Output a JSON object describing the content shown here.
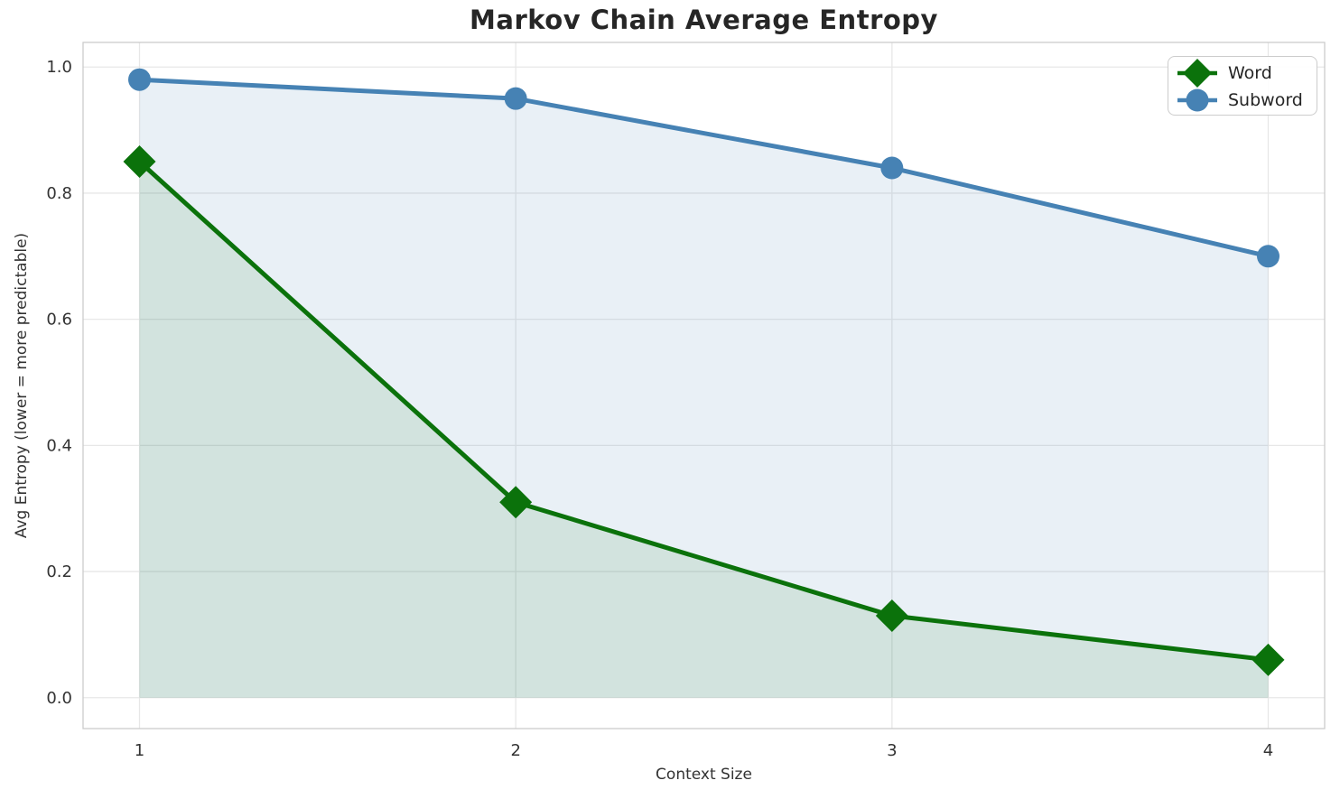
{
  "chart_data": {
    "type": "line",
    "title": "Markov Chain Average Entropy",
    "xlabel": "Context Size",
    "ylabel": "Avg Entropy (lower = more predictable)",
    "x": [
      1,
      2,
      3,
      4
    ],
    "series": [
      {
        "name": "Word",
        "values": [
          0.85,
          0.31,
          0.13,
          0.06
        ],
        "color": "#0b720b",
        "marker": "diamond",
        "fill_rgba": "rgba(11,114,11,0.10)",
        "line_width": 5,
        "marker_size": 18
      },
      {
        "name": "Subword",
        "values": [
          0.98,
          0.95,
          0.84,
          0.7
        ],
        "color": "#4682b4",
        "marker": "circle",
        "fill_rgba": "rgba(70,130,180,0.12)",
        "line_width": 5,
        "marker_size": 12.5
      }
    ],
    "area_fill_to": 0,
    "xlim": [
      0.85,
      4.15
    ],
    "ylim": [
      -0.049,
      1.039
    ],
    "xticks": [
      "1",
      "2",
      "3",
      "4"
    ],
    "xtick_values": [
      1,
      2,
      3,
      4
    ],
    "yticks": [
      "0.0",
      "0.2",
      "0.4",
      "0.6",
      "0.8",
      "1.0"
    ],
    "ytick_values": [
      0.0,
      0.2,
      0.4,
      0.6,
      0.8,
      1.0
    ],
    "grid": true,
    "legend": {
      "position": "upper-right",
      "entries": [
        "Word",
        "Subword"
      ]
    }
  },
  "colors": {
    "background": "#ffffff",
    "grid": "#e7e7e7",
    "spine": "#cbcbcb",
    "title": "#262626",
    "tick_label": "#333333",
    "axis_label": "#333333",
    "legend_border": "#cccccc",
    "legend_bg": "#ffffff"
  }
}
